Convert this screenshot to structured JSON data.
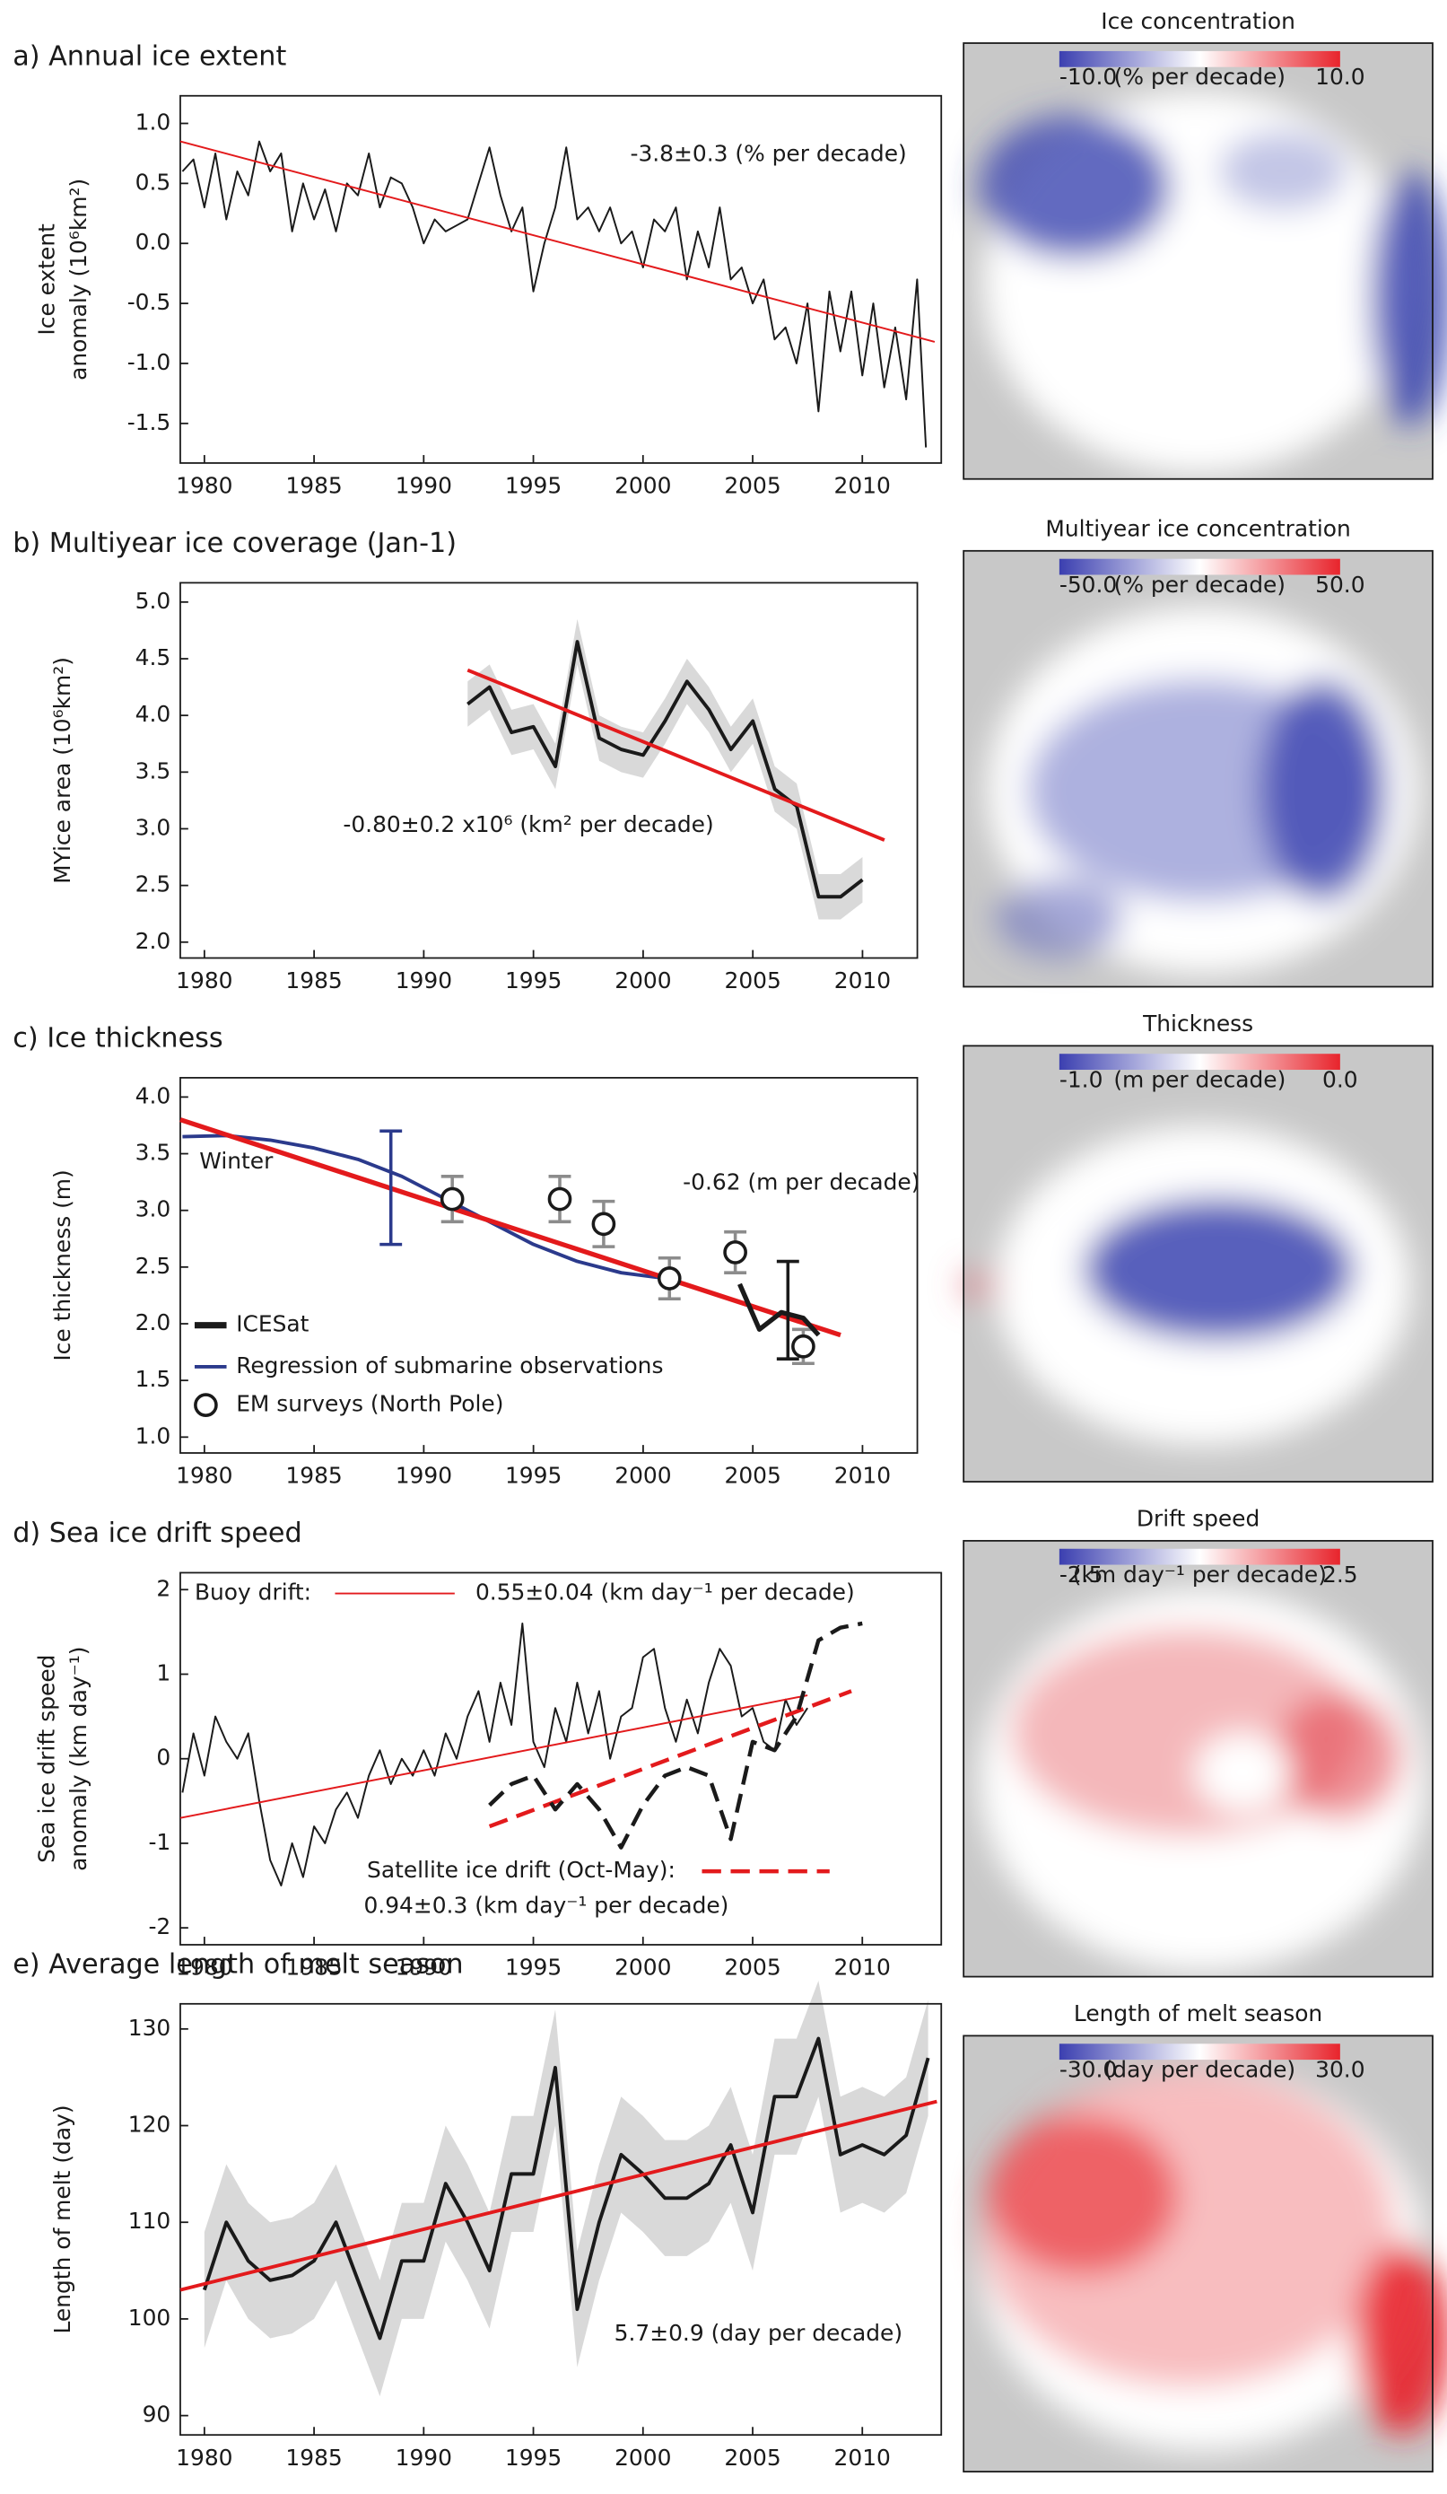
{
  "chart_data": [
    {
      "type": "line",
      "title": "a) Annual ice extent",
      "ylabel": [
        "Ice extent",
        "anomaly (10⁶km²)"
      ],
      "xlim": [
        1978.9,
        2013.6
      ],
      "xticks": [
        1980,
        1985,
        1990,
        1995,
        2000,
        2005,
        2010
      ],
      "ylim": [
        -1.83,
        1.23
      ],
      "yticks": [
        {
          "value": 1,
          "label": "1.0"
        },
        0.5,
        {
          "value": 0,
          "label": "0.0"
        },
        -0.5,
        {
          "value": -1,
          "label": "-1.0"
        },
        -1.5
      ],
      "annotations": [
        "-3.8±0.3 (% per decade)"
      ],
      "series": [
        {
          "color": "#1a1a1a",
          "style": "thin",
          "x": [
            1979,
            1979.5,
            1980,
            1980.5,
            1981,
            1981.5,
            1982,
            1982.5,
            1983,
            1983.5,
            1984,
            1984.5,
            1985,
            1985.5,
            1986,
            1986.5,
            1987,
            1987.5,
            1988,
            1988.5,
            1989,
            1989.5,
            1990,
            1990.5,
            1991,
            1991.5,
            1992,
            1992.5,
            1993,
            1993.5,
            1994,
            1994.5,
            1995,
            1995.5,
            1996,
            1996.5,
            1997,
            1997.5,
            1998,
            1998.5,
            1999,
            1999.5,
            2000,
            2000.5,
            2001,
            2001.5,
            2002,
            2002.5,
            2003,
            2003.5,
            2004,
            2004.5,
            2005,
            2005.5,
            2006,
            2006.5,
            2007,
            2007.5,
            2008,
            2008.5,
            2009,
            2009.5,
            2010,
            2010.5,
            2011,
            2011.5,
            2012,
            2012.5,
            2012.9
          ],
          "values": [
            0.6,
            0.7,
            0.3,
            0.75,
            0.2,
            0.6,
            0.4,
            0.85,
            0.6,
            0.75,
            0.1,
            0.5,
            0.2,
            0.45,
            0.1,
            0.5,
            0.4,
            0.75,
            0.3,
            0.55,
            0.5,
            0.3,
            0.0,
            0.2,
            0.1,
            0.15,
            0.2,
            0.5,
            0.8,
            0.4,
            0.1,
            0.3,
            -0.4,
            0.0,
            0.3,
            0.8,
            0.2,
            0.3,
            0.1,
            0.3,
            0.0,
            0.1,
            -0.2,
            0.2,
            0.1,
            0.3,
            -0.3,
            0.1,
            -0.2,
            0.3,
            -0.3,
            -0.2,
            -0.5,
            -0.3,
            -0.8,
            -0.7,
            -1.0,
            -0.5,
            -1.4,
            -0.4,
            -0.9,
            -0.4,
            -1.1,
            -0.5,
            -1.2,
            -0.7,
            -1.3,
            -0.3,
            -1.7
          ]
        },
        {
          "color": "#e31a1c",
          "style": "thin",
          "x": [
            1978.9,
            2013.3
          ],
          "values": [
            0.85,
            -0.82
          ]
        }
      ]
    },
    {
      "type": "line",
      "title": "b) Multiyear ice coverage (Jan-1)",
      "ylabel": [
        "MYice area (10⁶km²)"
      ],
      "xlim": [
        1978.9,
        2012.5
      ],
      "xticks": [
        1980,
        1985,
        1990,
        1995,
        2000,
        2005,
        2010
      ],
      "ylim": [
        1.86,
        5.17
      ],
      "yticks": [
        {
          "value": 5,
          "label": "5.0"
        },
        4.5,
        {
          "value": 4,
          "label": "4.0"
        },
        3.5,
        {
          "value": 3,
          "label": "3.0"
        },
        2.5,
        {
          "value": 2,
          "label": "2.0"
        }
      ],
      "annotations": [
        "-0.80±0.2 x10⁶ (km² per decade)"
      ],
      "series": [
        {
          "color": "#1a1a1a",
          "band_color": "#d9d9d9",
          "style": "medium",
          "x": [
            1992,
            1993,
            1994,
            1995,
            1996,
            1997,
            1998,
            1999,
            2000,
            2001,
            2002,
            2003,
            2004,
            2005,
            2006,
            2007,
            2008,
            2009,
            2010
          ],
          "values": [
            4.1,
            4.25,
            3.85,
            3.9,
            3.55,
            4.65,
            3.8,
            3.7,
            3.65,
            3.95,
            4.3,
            4.05,
            3.7,
            3.95,
            3.35,
            3.2,
            2.4,
            2.4,
            2.55
          ],
          "err": [
            0.2,
            0.2,
            0.2,
            0.2,
            0.2,
            0.2,
            0.2,
            0.2,
            0.2,
            0.2,
            0.2,
            0.2,
            0.2,
            0.2,
            0.2,
            0.2,
            0.2,
            0.2,
            0.2
          ]
        },
        {
          "color": "#e31a1c",
          "style": "medium",
          "x": [
            1992,
            2011
          ],
          "values": [
            4.4,
            2.9
          ]
        }
      ]
    },
    {
      "type": "line",
      "title": "c) Ice thickness",
      "ylabel": [
        "Ice thickness (m)"
      ],
      "xlim": [
        1978.9,
        2012.5
      ],
      "xticks": [
        1980,
        1985,
        1990,
        1995,
        2000,
        2005,
        2010
      ],
      "ylim": [
        0.86,
        4.17
      ],
      "yticks": [
        {
          "value": 4,
          "label": "4.0"
        },
        3.5,
        {
          "value": 3,
          "label": "3.0"
        },
        2.5,
        {
          "value": 2,
          "label": "2.0"
        },
        1.5,
        {
          "value": 1,
          "label": "1.0"
        }
      ],
      "annotations": [
        "Winter",
        "-0.62 (m per decade)"
      ],
      "series": [
        {
          "name": "Regression of submarine observations",
          "color": "#2b3a8c",
          "style": "medium",
          "x": [
            1979,
            1981,
            1983,
            1985,
            1987,
            1989,
            1991,
            1993,
            1995,
            1997,
            1999,
            2001
          ],
          "values": [
            3.65,
            3.66,
            3.62,
            3.55,
            3.45,
            3.3,
            3.1,
            2.9,
            2.7,
            2.55,
            2.45,
            2.4
          ]
        },
        {
          "color": "#e31a1c",
          "style": "thick",
          "x": [
            1978.9,
            2009
          ],
          "values": [
            3.8,
            1.9
          ]
        },
        {
          "color": "#2b3a8c",
          "style": "errorbar",
          "x": [
            1988.5
          ],
          "values": [
            3.2
          ],
          "err": [
            0.5
          ]
        },
        {
          "name": "EM surveys (North Pole)",
          "color": "#1a1a1a",
          "err_color": "#8c8c8c",
          "style": "markers",
          "x": [
            1991.3,
            1996.2,
            1998.2,
            2001.2,
            2004.2,
            2007.3
          ],
          "values": [
            3.1,
            3.1,
            2.88,
            2.4,
            2.63,
            1.8
          ],
          "err": [
            0.2,
            0.2,
            0.2,
            0.18,
            0.18,
            0.15
          ]
        },
        {
          "name": "ICESat",
          "color": "#1a1a1a",
          "style": "thick",
          "x": [
            2004.4,
            2005.3,
            2006.3,
            2007.3,
            2008
          ],
          "values": [
            2.35,
            1.95,
            2.1,
            2.05,
            1.9
          ]
        },
        {
          "color": "#1a1a1a",
          "style": "errorbar",
          "x": [
            2006.6
          ],
          "values": [
            2.12
          ],
          "err": [
            0.43
          ]
        }
      ]
    },
    {
      "type": "line",
      "title": "d) Sea ice drift speed",
      "ylabel": [
        "Sea ice drift speed",
        "anomaly (km day⁻¹)"
      ],
      "xlim": [
        1978.9,
        2013.6
      ],
      "xticks": [
        1980,
        1985,
        1990,
        1995,
        2000,
        2005,
        2010
      ],
      "ylim": [
        -2.2,
        2.2
      ],
      "yticks": [
        2,
        1,
        0,
        -1,
        -2
      ],
      "annotations": [
        "0.55±0.04 (km day⁻¹ per decade)",
        "0.94±0.3 (km day⁻¹ per decade)"
      ],
      "series": [
        {
          "color": "#1a1a1a",
          "style": "thin",
          "x": [
            1979,
            1979.5,
            1980,
            1980.5,
            1981,
            1981.5,
            1982,
            1982.5,
            1983,
            1983.5,
            1984,
            1984.5,
            1985,
            1985.5,
            1986,
            1986.5,
            1987,
            1987.5,
            1988,
            1988.5,
            1989,
            1989.5,
            1990,
            1990.5,
            1991,
            1991.5,
            1992,
            1992.5,
            1993,
            1993.5,
            1994,
            1994.5,
            1995,
            1995.5,
            1996,
            1996.5,
            1997,
            1997.5,
            1998,
            1998.5,
            1999,
            1999.5,
            2000,
            2000.5,
            2001,
            2001.5,
            2002,
            2002.5,
            2003,
            2003.5,
            2004,
            2004.5,
            2005,
            2005.5,
            2006,
            2006.5,
            2007,
            2007.5
          ],
          "values": [
            -0.4,
            0.3,
            -0.2,
            0.5,
            0.2,
            0.0,
            0.3,
            -0.5,
            -1.2,
            -1.5,
            -1.0,
            -1.4,
            -0.8,
            -1.0,
            -0.6,
            -0.4,
            -0.7,
            -0.2,
            0.1,
            -0.3,
            0.0,
            -0.2,
            0.1,
            -0.2,
            0.3,
            0.0,
            0.5,
            0.8,
            0.2,
            0.9,
            0.4,
            1.6,
            0.2,
            -0.1,
            0.6,
            0.2,
            0.9,
            0.3,
            0.8,
            0.0,
            0.5,
            0.6,
            1.2,
            1.3,
            0.6,
            0.2,
            0.7,
            0.3,
            0.9,
            1.3,
            1.1,
            0.5,
            0.6,
            0.2,
            0.1,
            0.7,
            0.4,
            0.6
          ]
        },
        {
          "name": "Buoy drift:",
          "color": "#e31a1c",
          "style": "thin",
          "x": [
            1978.9,
            2007.5
          ],
          "values": [
            -0.7,
            0.75
          ]
        },
        {
          "name": "Satellite ice drift (Oct-May):",
          "color": "#e31a1c",
          "style": "dashed",
          "x": [
            1993,
            2009.5
          ],
          "values": [
            -0.8,
            0.8
          ]
        },
        {
          "color": "#1a1a1a",
          "style": "dashed",
          "x": [
            1993,
            1994,
            1995,
            1996,
            1997,
            1998,
            1999,
            2000,
            2001,
            2002,
            2003,
            2004,
            2005,
            2006,
            2007,
            2008,
            2009,
            2010
          ],
          "values": [
            -0.55,
            -0.3,
            -0.2,
            -0.6,
            -0.3,
            -0.6,
            -1.05,
            -0.55,
            -0.2,
            -0.1,
            -0.2,
            -0.95,
            0.2,
            0.1,
            0.5,
            1.4,
            1.55,
            1.6
          ]
        }
      ]
    },
    {
      "type": "line",
      "title": "e) Average length of melt season",
      "ylabel": [
        "Length of melt (day)"
      ],
      "xlim": [
        1978.9,
        2013.6
      ],
      "xticks": [
        1980,
        1985,
        1990,
        1995,
        2000,
        2005,
        2010
      ],
      "ylim": [
        88,
        132.6
      ],
      "yticks": [
        130,
        120,
        110,
        100,
        90
      ],
      "annotations": [
        "5.7±0.9 (day per decade)"
      ],
      "series": [
        {
          "color": "#1a1a1a",
          "band_color": "#d9d9d9",
          "style": "medium",
          "x": [
            1980,
            1981,
            1982,
            1983,
            1984,
            1985,
            1986,
            1987,
            1988,
            1989,
            1990,
            1991,
            1992,
            1993,
            1994,
            1995,
            1996,
            1997,
            1998,
            1999,
            2000,
            2001,
            2002,
            2003,
            2004,
            2005,
            2006,
            2007,
            2008,
            2009,
            2010,
            2011,
            2012,
            2013
          ],
          "values": [
            103,
            110,
            106,
            104,
            104.5,
            106,
            110,
            104,
            98,
            106,
            106,
            114,
            110,
            105,
            115,
            115,
            126,
            101,
            110,
            117,
            115,
            112.5,
            112.5,
            114,
            118,
            111,
            123,
            123,
            129,
            117,
            118,
            117,
            119,
            127
          ],
          "err": [
            6,
            6,
            6,
            6,
            6,
            6,
            6,
            6,
            6,
            6,
            6,
            6,
            6,
            6,
            6,
            6,
            6,
            6,
            6,
            6,
            6,
            6,
            6,
            6,
            6,
            6,
            6,
            6,
            6,
            6,
            6,
            6,
            6,
            6
          ]
        },
        {
          "color": "#e31a1c",
          "style": "medium",
          "x": [
            1978.9,
            2013.4
          ],
          "values": [
            103,
            122.5
          ]
        }
      ]
    }
  ],
  "maps": [
    {
      "title": "Ice concentration",
      "colorbar": [
        "-10.0",
        "(% per decade)",
        "10.0"
      ]
    },
    {
      "title": "Multiyear ice concentration",
      "colorbar": [
        "-50.0",
        "(% per decade)",
        "50.0"
      ]
    },
    {
      "title": "Thickness",
      "colorbar": [
        "-1.0",
        "(m per decade)",
        "0.0"
      ]
    },
    {
      "title": "Drift speed",
      "colorbar": [
        "-2.5",
        "(km day⁻¹ per decade)",
        "2.5"
      ]
    },
    {
      "title": "Length of melt season",
      "colorbar": [
        "-30.0",
        "(day per decade)",
        "30.0"
      ]
    }
  ]
}
